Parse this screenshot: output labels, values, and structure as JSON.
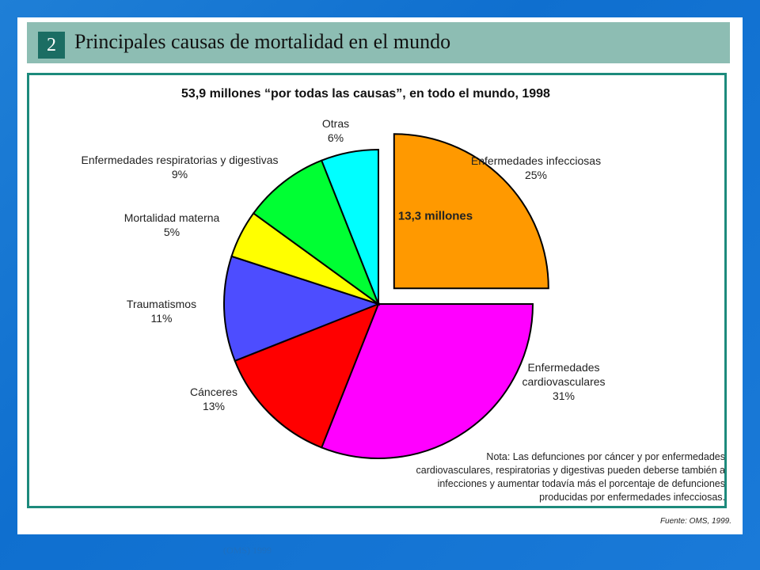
{
  "header": {
    "number": "2",
    "title": "Principales causas de mortalidad en el mundo"
  },
  "chart_data": {
    "type": "pie",
    "title": "53,9 millones “por todas las causas”, en todo el mundo, 1998",
    "slices": [
      {
        "label": "Enfermedades infecciosas",
        "value": 25,
        "value_label": "25%",
        "color": "#ff9900",
        "exploded": true,
        "inner_label": "13,3 millones"
      },
      {
        "label": "Enfermedades cardiovasculares",
        "value": 31,
        "value_label": "31%",
        "color": "#ff00ff"
      },
      {
        "label": "Cánceres",
        "value": 13,
        "value_label": "13%",
        "color": "#ff0000"
      },
      {
        "label": "Traumatismos",
        "value": 11,
        "value_label": "11%",
        "color": "#4d4dff"
      },
      {
        "label": "Mortalidad materna",
        "value": 5,
        "value_label": "5%",
        "color": "#ffff00"
      },
      {
        "label": "Enfermedades respiratorias y digestivas",
        "value": 9,
        "value_label": "9%",
        "color": "#00ff33"
      },
      {
        "label": "Otras",
        "value": 6,
        "value_label": "6%",
        "color": "#00ffff"
      }
    ],
    "note": [
      "Nota: Las defunciones por cáncer y por enfermedades",
      "cardiovasculares, respiratorias y digestivas pueden deberse también a",
      "infecciones y aumentar todavía más el porcentaje de defunciones",
      "producidas por enfermedades infecciosas."
    ]
  },
  "source": "Fuente: OMS, 1999.",
  "footer_caption": "(OMS) 1999"
}
